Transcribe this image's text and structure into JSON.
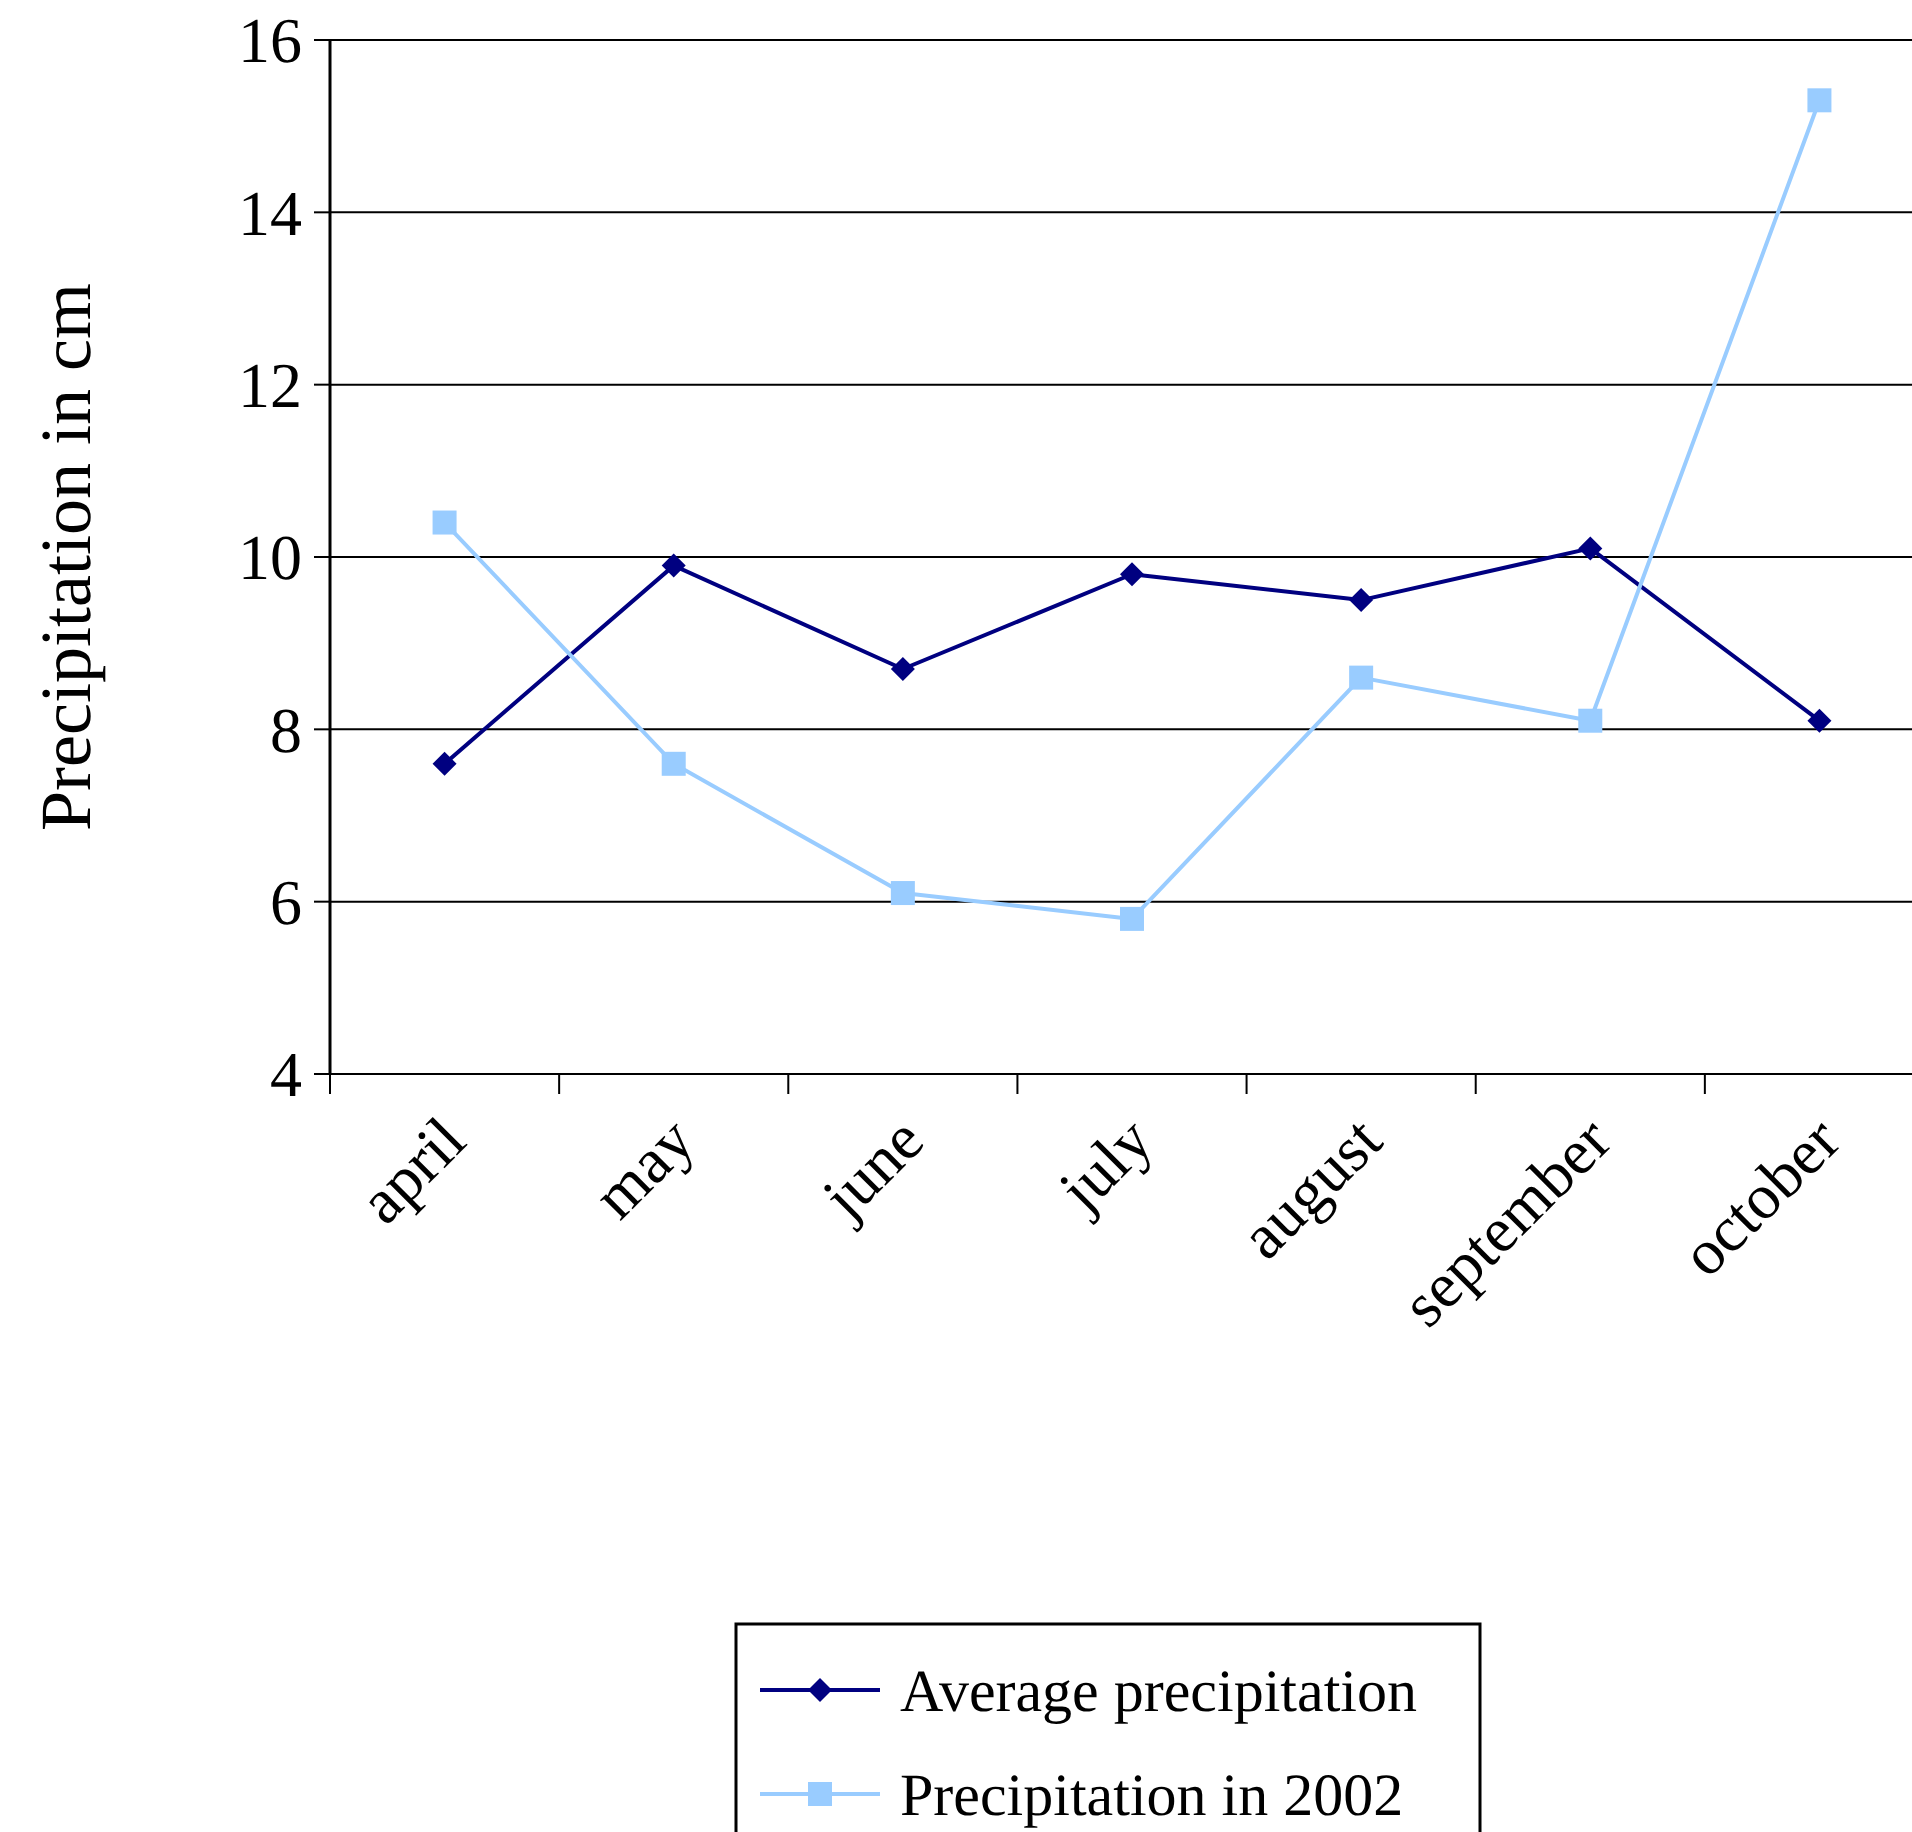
{
  "chart_data": {
    "type": "line",
    "ylabel": "Precipitation in cm",
    "categories": [
      "april",
      "may",
      "june",
      "july",
      "august",
      "september",
      "october"
    ],
    "series": [
      {
        "name": "Average precipitation",
        "color": "#000080",
        "marker": "diamond",
        "values": [
          7.6,
          9.9,
          8.7,
          9.8,
          9.5,
          10.1,
          8.1
        ]
      },
      {
        "name": "Precipitation in 2002",
        "color": "#99ccff",
        "marker": "square",
        "values": [
          10.4,
          7.6,
          6.1,
          5.8,
          8.6,
          8.1,
          15.3
        ]
      }
    ],
    "ylim": [
      4,
      16
    ],
    "yticks": [
      4,
      6,
      8,
      10,
      12,
      14,
      16
    ],
    "grid": "y",
    "legend": "bottom",
    "line_style": "solid"
  }
}
